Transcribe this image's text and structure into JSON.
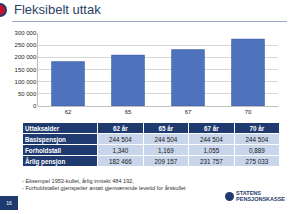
{
  "chart_data": {
    "type": "bar",
    "categories": [
      "62",
      "65",
      "67",
      "70"
    ],
    "values": [
      182466,
      209157,
      231757,
      275033
    ],
    "color": "#4f72bd",
    "ylim": [
      0,
      300000
    ],
    "yticks": [
      0,
      {
        "value": 50000,
        "label": "50 000"
      },
      {
        "value": 100000,
        "label": "100 000"
      },
      {
        "value": 150000,
        "label": "150 000"
      },
      {
        "value": 200000,
        "label": "200 000"
      },
      {
        "value": 250000,
        "label": "250 000"
      },
      {
        "value": 300000,
        "label": "300 000"
      }
    ],
    "grid": true
  },
  "slide": {
    "title": "Fleksibelt uttak",
    "table": {
      "header": [
        "Uttaksalder",
        "62 år",
        "65 år",
        "67 år",
        "70 år"
      ],
      "rows": [
        [
          "Basispensjon",
          "244 504",
          "244 504",
          "244 504",
          "244 504"
        ],
        [
          "Forholdstall",
          "1,340",
          "1,169",
          "1,055",
          "0,889"
        ],
        [
          "Årlig pensjon",
          "182 466",
          "209 157",
          "231 757",
          "275 033"
        ]
      ]
    },
    "notes": [
      "- Eksempel 1953-kullet, årlig inntekt 484 192,",
      "- Forholdstallet gjenspeiler antatt gjenværende levetid for årskullet"
    ],
    "page": "16",
    "logo": [
      "STATENS",
      "PENSJONSKASSE"
    ]
  }
}
